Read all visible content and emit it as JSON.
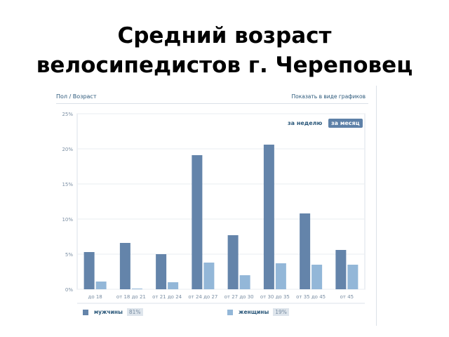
{
  "slide": {
    "title_lines": [
      "Средний возраст",
      "велосипедистов г. Череповец"
    ]
  },
  "widget": {
    "header_title": "Пол / Возраст",
    "header_link": "Показать в виде графиков",
    "period_week": "за неделю",
    "period_month": "за месяц"
  },
  "legend": {
    "men_label": "мужчины",
    "men_percent": "81%",
    "women_label": "женщины",
    "women_percent": "19%"
  },
  "colors": {
    "men": "#6484aa",
    "women": "#93b7d8",
    "grid": "#eaedf0",
    "axis_text": "#7a8ea3",
    "link": "#2b587a",
    "active_tab": "#5e81a8"
  },
  "chart_data": {
    "type": "bar",
    "categories": [
      "до 18",
      "от 18 до 21",
      "от 21 до 24",
      "от 24 до 27",
      "от 27 до 30",
      "от 30 до 35",
      "от 35 до 45",
      "от 45"
    ],
    "series": [
      {
        "name": "мужчины",
        "values": [
          5.3,
          6.6,
          5.0,
          19.1,
          7.7,
          20.6,
          10.8,
          5.6
        ]
      },
      {
        "name": "женщины",
        "values": [
          1.1,
          0.1,
          1.0,
          3.8,
          2.0,
          3.7,
          3.5,
          3.5
        ]
      }
    ],
    "y_ticks": [
      "0%",
      "5%",
      "10%",
      "15%",
      "20%",
      "25%"
    ],
    "ylim": [
      0,
      25
    ],
    "grid": true,
    "legend_position": "bottom"
  }
}
